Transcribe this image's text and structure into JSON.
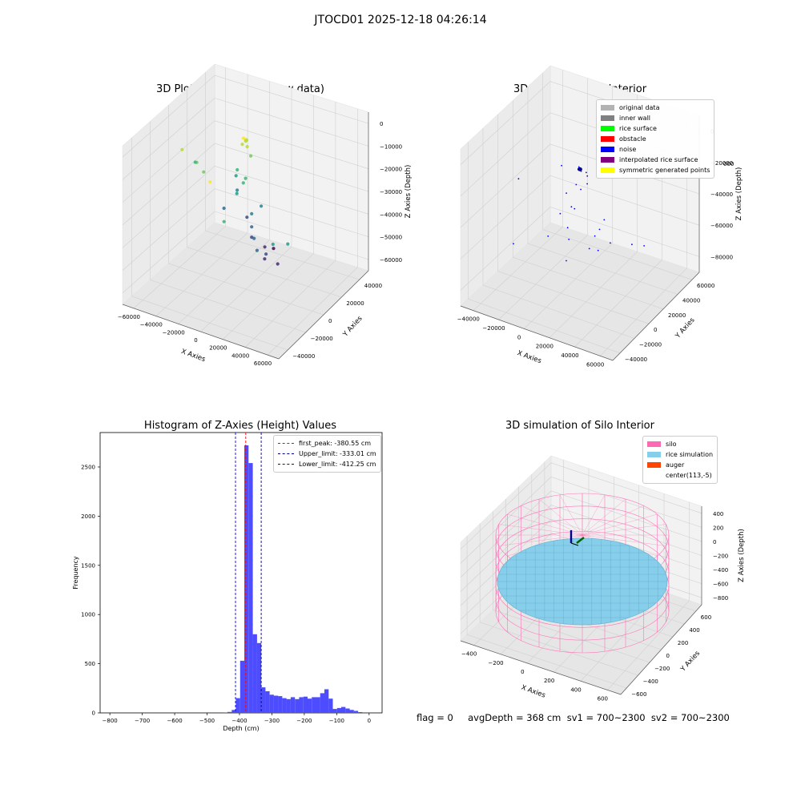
{
  "suptitle": "JTOCD01 2025-12-18 04:26:14",
  "status_line": "flag = 0     avgDepth = 368 cm  sv1 = 700~2300  sv2 = 700~2300",
  "chart_data": [
    {
      "type": "scatter",
      "projection": "3d",
      "title": "3D Plot of Silo Interior(row data)",
      "xlabel": "X Axies",
      "ylabel": "Y Axies",
      "zlabel": "Z Axies (Depth)",
      "x_ticks": [
        "−60000",
        "−40000",
        "−20000",
        "0",
        "20000",
        "40000",
        "60000"
      ],
      "y_ticks": [
        "−40000",
        "−20000",
        "0",
        "20000",
        "40000"
      ],
      "z_ticks": [
        "0",
        "−10000",
        "−20000",
        "−30000",
        "−40000",
        "−50000",
        "−60000"
      ],
      "colormap": "viridis",
      "points": [
        {
          "x": -1000,
          "y": -38000,
          "z": -5000
        },
        {
          "x": -18000,
          "y": 20000,
          "z": -9000
        },
        {
          "x": -16500,
          "y": 20500,
          "z": -9500
        },
        {
          "x": -15500,
          "y": 21000,
          "z": -10000
        },
        {
          "x": -17000,
          "y": 21500,
          "z": -11000
        },
        {
          "x": -19000,
          "y": 20000,
          "z": -12500
        },
        {
          "x": -16000,
          "y": 22000,
          "z": -14000
        },
        {
          "x": -60000,
          "y": 0,
          "z": -15000
        },
        {
          "x": -50000,
          "y": 5000,
          "z": -22000
        },
        {
          "x": -60000,
          "y": 15000,
          "z": -28000
        },
        {
          "x": -35000,
          "y": -5000,
          "z": -20000
        },
        {
          "x": -15000,
          "y": 25000,
          "z": -20000
        },
        {
          "x": 9000,
          "y": -34000,
          "z": -26000
        },
        {
          "x": -28000,
          "y": 25000,
          "z": -30000
        },
        {
          "x": -20000,
          "y": 25000,
          "z": -33000
        },
        {
          "x": -30000,
          "y": 26000,
          "z": -34000
        },
        {
          "x": -18000,
          "y": 20000,
          "z": -33000
        },
        {
          "x": -20000,
          "y": 15000,
          "z": -37000
        },
        {
          "x": 40000,
          "y": -15000,
          "z": -40000
        },
        {
          "x": 50000,
          "y": -10000,
          "z": -40000
        },
        {
          "x": -34000,
          "y": 32000,
          "z": -45000
        },
        {
          "x": -5000,
          "y": 25000,
          "z": -45000
        },
        {
          "x": -10000,
          "y": 20000,
          "z": -48000
        },
        {
          "x": -45000,
          "y": 30000,
          "z": -56000
        },
        {
          "x": 5000,
          "y": 5000,
          "z": -52000
        },
        {
          "x": 12000,
          "y": 0,
          "z": -55000
        },
        {
          "x": -10000,
          "y": 20000,
          "z": -55000
        },
        {
          "x": -28000,
          "y": 36000,
          "z": -60000
        },
        {
          "x": -15000,
          "y": 26000,
          "z": -64000
        },
        {
          "x": 8000,
          "y": 15000,
          "z": -64000
        },
        {
          "x": 5000,
          "y": 17000,
          "z": -68000
        },
        {
          "x": -10000,
          "y": 35000,
          "z": -72000
        },
        {
          "x": 15000,
          "y": 20000,
          "z": -70000
        },
        {
          "x": -10000,
          "y": 45000,
          "z": -77000
        }
      ]
    },
    {
      "type": "scatter",
      "projection": "3d",
      "title": "3D classify of Silo Interior",
      "xlabel": "X Axies",
      "ylabel": "Y Axies",
      "zlabel": "Z Axies (Depth)",
      "x_ticks": [
        "−40000",
        "−20000",
        "0",
        "20000",
        "40000",
        "60000"
      ],
      "y_ticks": [
        "−40000",
        "−20000",
        "0",
        "20000",
        "40000",
        "60000"
      ],
      "z_ticks": [
        "0",
        "−20000",
        "−40000",
        "−60000",
        "−80000"
      ],
      "z_top_tick_partial": "000",
      "legend": {
        "position": "upper right",
        "items": [
          {
            "label": "original data",
            "color": "#b3b3b3"
          },
          {
            "label": "inner wall",
            "color": "#808080"
          },
          {
            "label": "rice surface",
            "color": "#00ff00"
          },
          {
            "label": "obstacle",
            "color": "#ff0000"
          },
          {
            "label": "noise",
            "color": "#0000ff"
          },
          {
            "label": "interpolated rice surface",
            "color": "#800080"
          },
          {
            "label": "symmetric generated points",
            "color": "#ffff00"
          }
        ]
      },
      "points_noise": [
        {
          "x": 22000,
          "y": 35000,
          "z": -5000
        },
        {
          "x": -35000,
          "y": -5000,
          "z": -25000
        },
        {
          "x": -15000,
          "y": 20000,
          "z": -22000
        },
        {
          "x": -2000,
          "y": 22000,
          "z": -20000
        },
        {
          "x": 1000,
          "y": 20000,
          "z": -21000
        },
        {
          "x": 4000,
          "y": 22000,
          "z": -22000
        },
        {
          "x": 3000,
          "y": 25000,
          "z": -26000
        },
        {
          "x": 0,
          "y": 15000,
          "z": -28000
        },
        {
          "x": 6000,
          "y": 20000,
          "z": -28000
        },
        {
          "x": 2000,
          "y": 18000,
          "z": -32000
        },
        {
          "x": -8000,
          "y": 15000,
          "z": -36000
        },
        {
          "x": 3000,
          "y": 8000,
          "z": -40000
        },
        {
          "x": -2000,
          "y": 12000,
          "z": -42000
        },
        {
          "x": -10000,
          "y": 10000,
          "z": -48000
        },
        {
          "x": 20000,
          "y": 20000,
          "z": -48000
        },
        {
          "x": 55000,
          "y": 0,
          "z": -45000
        },
        {
          "x": 65000,
          "y": 0,
          "z": -43000
        },
        {
          "x": -30000,
          "y": -20000,
          "z": -60000
        },
        {
          "x": 2000,
          "y": 2000,
          "z": -58000
        },
        {
          "x": 20000,
          "y": 0,
          "z": -58000
        },
        {
          "x": -10000,
          "y": 20000,
          "z": -62000
        },
        {
          "x": 10000,
          "y": 30000,
          "z": -62000
        },
        {
          "x": 25000,
          "y": 20000,
          "z": -62000
        },
        {
          "x": -20000,
          "y": 10000,
          "z": -66000
        },
        {
          "x": 15000,
          "y": 20000,
          "z": -70000
        },
        {
          "x": 0,
          "y": 40000,
          "z": -74000
        },
        {
          "x": -5000,
          "y": 10000,
          "z": -78000
        }
      ],
      "noise_cluster": {
        "x": 0,
        "y": 20000,
        "z": -20000
      }
    },
    {
      "type": "bar",
      "subtype": "histogram",
      "title": "Histogram of Z-Axies (Height) Values",
      "xlabel": "Depth (cm)",
      "ylabel": "Frequency",
      "xlim": [
        -830,
        40
      ],
      "ylim": [
        0,
        2850
      ],
      "x_ticks": [
        -800,
        -700,
        -600,
        -500,
        -400,
        -300,
        -200,
        -100,
        0
      ],
      "y_ticks": [
        0,
        500,
        1000,
        1500,
        2000,
        2500
      ],
      "bar_color": "#4d4dff",
      "bins": [
        {
          "start": -450,
          "end": -437,
          "count": 2
        },
        {
          "start": -437,
          "end": -424,
          "count": 10
        },
        {
          "start": -424,
          "end": -411,
          "count": 30
        },
        {
          "start": -411,
          "end": -398,
          "count": 150
        },
        {
          "start": -398,
          "end": -385,
          "count": 530
        },
        {
          "start": -385,
          "end": -372,
          "count": 2720
        },
        {
          "start": -372,
          "end": -359,
          "count": 2540
        },
        {
          "start": -359,
          "end": -346,
          "count": 800
        },
        {
          "start": -346,
          "end": -333,
          "count": 710
        },
        {
          "start": -333,
          "end": -320,
          "count": 260
        },
        {
          "start": -320,
          "end": -307,
          "count": 220
        },
        {
          "start": -307,
          "end": -294,
          "count": 185
        },
        {
          "start": -294,
          "end": -281,
          "count": 175
        },
        {
          "start": -281,
          "end": -268,
          "count": 170
        },
        {
          "start": -268,
          "end": -255,
          "count": 150
        },
        {
          "start": -255,
          "end": -242,
          "count": 140
        },
        {
          "start": -242,
          "end": -229,
          "count": 160
        },
        {
          "start": -229,
          "end": -216,
          "count": 140
        },
        {
          "start": -216,
          "end": -203,
          "count": 160
        },
        {
          "start": -203,
          "end": -190,
          "count": 165
        },
        {
          "start": -190,
          "end": -177,
          "count": 145
        },
        {
          "start": -177,
          "end": -164,
          "count": 160
        },
        {
          "start": -164,
          "end": -151,
          "count": 160
        },
        {
          "start": -151,
          "end": -138,
          "count": 200
        },
        {
          "start": -138,
          "end": -125,
          "count": 240
        },
        {
          "start": -125,
          "end": -112,
          "count": 145
        },
        {
          "start": -112,
          "end": -99,
          "count": 40
        },
        {
          "start": -99,
          "end": -86,
          "count": 50
        },
        {
          "start": -86,
          "end": -73,
          "count": 60
        },
        {
          "start": -73,
          "end": -60,
          "count": 45
        },
        {
          "start": -60,
          "end": -47,
          "count": 30
        },
        {
          "start": -47,
          "end": -34,
          "count": 20
        },
        {
          "start": -34,
          "end": -21,
          "count": 8
        }
      ],
      "lines": [
        {
          "label": "first_peak: -380.55 cm",
          "value": -380.55,
          "color": "#ff0000"
        },
        {
          "label": "Upper_limit: -333.01 cm",
          "value": -333.01,
          "color": "#00008b"
        },
        {
          "label": "Lower_limit: -412.25 cm",
          "value": -412.25,
          "color": "#0000ff"
        }
      ],
      "legend_position": "upper right"
    },
    {
      "type": "surface",
      "projection": "3d",
      "title": "3D simulation of Silo Interior",
      "xlabel": "X Axies",
      "ylabel": "Y Axies",
      "zlabel": "Z Axies (Depth)",
      "x_ticks": [
        "−400",
        "−200",
        "0",
        "200",
        "400",
        "600"
      ],
      "y_ticks": [
        "−600",
        "−400",
        "−200",
        "0",
        "200",
        "400",
        "600"
      ],
      "z_ticks": [
        "400",
        "200",
        "0",
        "−200",
        "−400",
        "−600",
        "−800"
      ],
      "silo": {
        "center_x": 113,
        "center_y": -5,
        "radius": 600,
        "z_top": 0,
        "z_bottom": -900
      },
      "rice_surface_z": -368,
      "legend": {
        "position": "upper right",
        "items": [
          {
            "label": "silo",
            "color": "#ff69b4"
          },
          {
            "label": "rice simulation",
            "color": "#87ceeb"
          },
          {
            "label": "auger",
            "color": "#ff4500"
          },
          {
            "label": "center(113,-5)",
            "color": "none"
          }
        ]
      }
    }
  ]
}
